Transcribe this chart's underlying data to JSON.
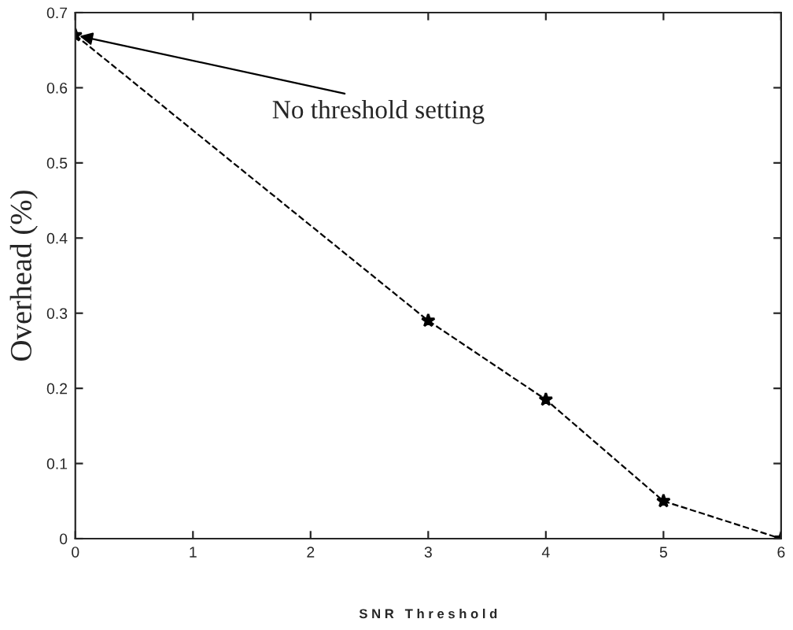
{
  "chart_data": {
    "type": "line",
    "xlabel": "S N R   T h r e s h o l d",
    "ylabel": "Overhead (%)",
    "x": [
      0,
      3,
      4,
      5,
      6
    ],
    "series": [
      {
        "color": "#000000",
        "values": [
          0.67,
          0.29,
          0.185,
          0.05,
          0.0
        ]
      }
    ],
    "xlim": [
      0,
      6
    ],
    "ylim": [
      0,
      0.7
    ],
    "xticks": [
      0,
      1,
      2,
      3,
      4,
      5,
      6
    ],
    "yticks": [
      0,
      0.1,
      0.2,
      0.3,
      0.4,
      0.5,
      0.6,
      0.7
    ],
    "marker": "star",
    "line_style": "dashed",
    "grid": false,
    "annotations": [
      {
        "text": "No threshold setting",
        "x": 0,
        "y": 0.67
      }
    ]
  }
}
